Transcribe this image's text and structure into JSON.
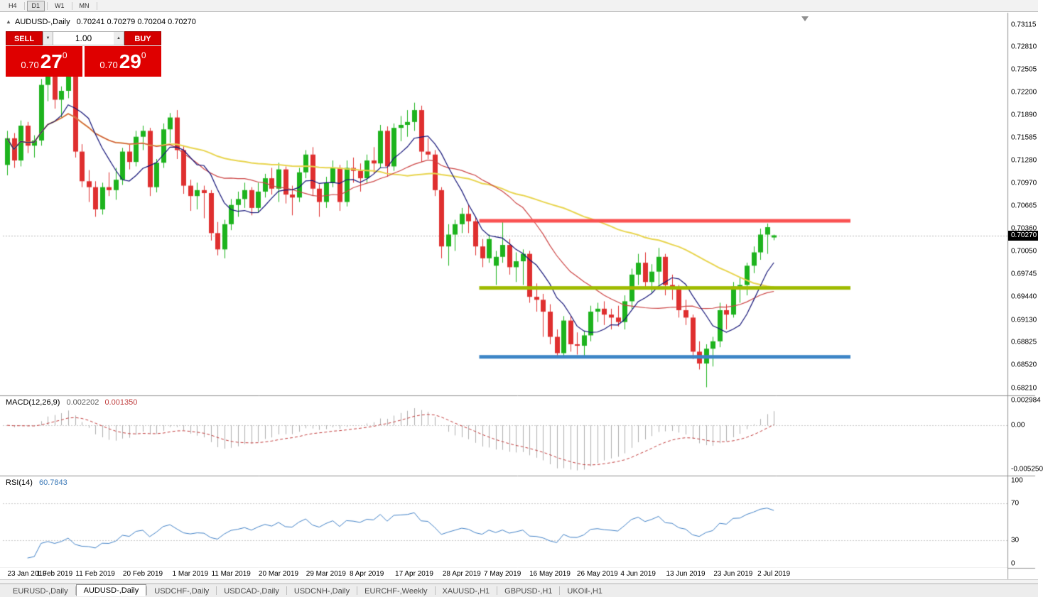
{
  "toolbar": {
    "periods": [
      {
        "label": "H4",
        "active": false
      },
      {
        "label": "D1",
        "active": true
      },
      {
        "label": "W1",
        "active": false
      },
      {
        "label": "MN",
        "active": false
      }
    ]
  },
  "chart_header": {
    "title": "AUDUSD-,Daily",
    "ohlc": "0.70241 0.70279 0.70204 0.70270"
  },
  "trade_panel": {
    "sell_label": "SELL",
    "buy_label": "BUY",
    "volume": "1.00",
    "bid": {
      "prefix": "0.70",
      "big": "27",
      "sup": "0"
    },
    "ask": {
      "prefix": "0.70",
      "big": "29",
      "sup": "0"
    }
  },
  "price_scale": {
    "labels": [
      "0.73115",
      "0.72810",
      "0.72505",
      "0.72200",
      "0.71890",
      "0.71585",
      "0.71280",
      "0.70970",
      "0.70665",
      "0.70360",
      "0.70050",
      "0.69745",
      "0.69440",
      "0.69130",
      "0.68825",
      "0.68520",
      "0.68210"
    ],
    "bid_badge": "0.70270"
  },
  "time_axis": {
    "labels": [
      {
        "text": "23 Jan 2019",
        "bar": 0
      },
      {
        "text": "1 Feb 2019",
        "bar": 7
      },
      {
        "text": "11 Feb 2019",
        "bar": 13
      },
      {
        "text": "20 Feb 2019",
        "bar": 20
      },
      {
        "text": "1 Mar 2019",
        "bar": 27
      },
      {
        "text": "11 Mar 2019",
        "bar": 33
      },
      {
        "text": "20 Mar 2019",
        "bar": 40
      },
      {
        "text": "29 Mar 2019",
        "bar": 47
      },
      {
        "text": "8 Apr 2019",
        "bar": 53
      },
      {
        "text": "17 Apr 2019",
        "bar": 60
      },
      {
        "text": "28 Apr 2019",
        "bar": 67
      },
      {
        "text": "7 May 2019",
        "bar": 73
      },
      {
        "text": "16 May 2019",
        "bar": 80
      },
      {
        "text": "26 May 2019",
        "bar": 87
      },
      {
        "text": "4 Jun 2019",
        "bar": 93
      },
      {
        "text": "13 Jun 2019",
        "bar": 100
      },
      {
        "text": "23 Jun 2019",
        "bar": 107
      },
      {
        "text": "2 Jul 2019",
        "bar": 113
      }
    ]
  },
  "macd_panel": {
    "title": "MACD(12,26,9)",
    "value_main": "0.002202",
    "value_signal": "0.001350",
    "scale_labels": [
      "0.002984",
      "0.00",
      "-0.005250"
    ]
  },
  "rsi_panel": {
    "title": "RSI(14)",
    "value": "60.7843",
    "scale_labels": [
      "100",
      "70",
      "30",
      "0"
    ]
  },
  "tabs": [
    {
      "label": "EURUSD-,Daily",
      "active": false
    },
    {
      "label": "AUDUSD-,Daily",
      "active": true
    },
    {
      "label": "USDCHF-,Daily",
      "active": false
    },
    {
      "label": "USDCAD-,Daily",
      "active": false
    },
    {
      "label": "USDCNH-,Daily",
      "active": false
    },
    {
      "label": "EURCHF-,Weekly",
      "active": false
    },
    {
      "label": "XAUUSD-,H1",
      "active": false
    },
    {
      "label": "GBPUSD-,H1",
      "active": false
    },
    {
      "label": "UKOil-,H1",
      "active": false
    }
  ],
  "chart_data": {
    "type": "candlestick",
    "symbol": "AUDUSD-",
    "timeframe": "Daily",
    "ohlc_current": {
      "open": 0.70241,
      "high": 0.70279,
      "low": 0.70204,
      "close": 0.7027
    },
    "bid_price": 0.7027,
    "ylim": [
      0.6811,
      0.73235
    ],
    "rsi_levels": [
      70,
      30
    ],
    "colors": {
      "up": "#1db31d",
      "down": "#df2f2f",
      "bid_line": "#b4b4b4",
      "macd_hist": "#aeaeae",
      "macd_signal": "#c03a3a",
      "rsi": "#4080c6",
      "level_dotted": "#c8c8c8",
      "separator": "#8f8f8f",
      "tick": "#555555"
    },
    "moving_averages": [
      {
        "period": 50,
        "color": "#e8d44d",
        "width": 2
      },
      {
        "period": 20,
        "color": "#cc4444",
        "width": 1.2
      },
      {
        "period": 8,
        "color": "#141478",
        "width": 1.2
      }
    ],
    "hlines": [
      {
        "price": 0.70466,
        "color": "#fa5252",
        "from_bar": 70,
        "to_x": 1197,
        "thickness": 5
      },
      {
        "price": 0.6956,
        "color": "#9fbb00",
        "from_bar": 70,
        "to_x": 1197,
        "thickness": 5
      },
      {
        "price": 0.6863,
        "color": "#3d85c6",
        "from_bar": 70,
        "to_x": 1197,
        "thickness": 5
      }
    ],
    "candles": [
      [
        0.7122,
        0.7168,
        0.7108,
        0.7158
      ],
      [
        0.7158,
        0.7165,
        0.7118,
        0.7128
      ],
      [
        0.7128,
        0.7182,
        0.712,
        0.7175
      ],
      [
        0.7175,
        0.718,
        0.7138,
        0.7148
      ],
      [
        0.7148,
        0.7162,
        0.7132,
        0.7155
      ],
      [
        0.7155,
        0.7238,
        0.7148,
        0.723
      ],
      [
        0.723,
        0.725,
        0.7208,
        0.7242
      ],
      [
        0.7242,
        0.7248,
        0.7198,
        0.721
      ],
      [
        0.721,
        0.7228,
        0.7185,
        0.7222
      ],
      [
        0.7222,
        0.7248,
        0.7212,
        0.7243
      ],
      [
        0.7243,
        0.7246,
        0.7132,
        0.714
      ],
      [
        0.714,
        0.715,
        0.7092,
        0.71
      ],
      [
        0.71,
        0.7115,
        0.7072,
        0.7092
      ],
      [
        0.7092,
        0.71,
        0.7052,
        0.7062
      ],
      [
        0.7062,
        0.7098,
        0.7055,
        0.7092
      ],
      [
        0.7092,
        0.7112,
        0.708,
        0.7088
      ],
      [
        0.7088,
        0.7118,
        0.7075,
        0.7102
      ],
      [
        0.7102,
        0.7145,
        0.7095,
        0.714
      ],
      [
        0.714,
        0.715,
        0.7116,
        0.7126
      ],
      [
        0.7126,
        0.7168,
        0.712,
        0.716
      ],
      [
        0.716,
        0.7175,
        0.7142,
        0.7168
      ],
      [
        0.7168,
        0.7172,
        0.708,
        0.7092
      ],
      [
        0.7092,
        0.713,
        0.7085,
        0.7125
      ],
      [
        0.7125,
        0.7178,
        0.7118,
        0.717
      ],
      [
        0.717,
        0.7192,
        0.7152,
        0.7186
      ],
      [
        0.7186,
        0.7196,
        0.713,
        0.7142
      ],
      [
        0.7142,
        0.7148,
        0.7083,
        0.7094
      ],
      [
        0.7094,
        0.7102,
        0.706,
        0.708
      ],
      [
        0.708,
        0.7098,
        0.7062,
        0.7088
      ],
      [
        0.7088,
        0.7094,
        0.705,
        0.7084
      ],
      [
        0.7084,
        0.7088,
        0.702,
        0.703
      ],
      [
        0.703,
        0.7045,
        0.7,
        0.7008
      ],
      [
        0.7008,
        0.7048,
        0.6996,
        0.7042
      ],
      [
        0.7042,
        0.7076,
        0.7034,
        0.7068
      ],
      [
        0.7068,
        0.7086,
        0.7052,
        0.7076
      ],
      [
        0.7076,
        0.7098,
        0.7064,
        0.7088
      ],
      [
        0.7088,
        0.7092,
        0.7054,
        0.7064
      ],
      [
        0.7064,
        0.7098,
        0.7058,
        0.7086
      ],
      [
        0.7086,
        0.711,
        0.7078,
        0.7104
      ],
      [
        0.7104,
        0.7118,
        0.7082,
        0.709
      ],
      [
        0.709,
        0.7125,
        0.7072,
        0.7116
      ],
      [
        0.7116,
        0.712,
        0.707,
        0.7082
      ],
      [
        0.7082,
        0.7094,
        0.7054,
        0.7078
      ],
      [
        0.7078,
        0.7118,
        0.7072,
        0.7112
      ],
      [
        0.7112,
        0.7142,
        0.7104,
        0.7136
      ],
      [
        0.7136,
        0.7146,
        0.708,
        0.709
      ],
      [
        0.709,
        0.7096,
        0.7052,
        0.7072
      ],
      [
        0.7072,
        0.7106,
        0.7064,
        0.7098
      ],
      [
        0.7098,
        0.7128,
        0.7092,
        0.7118
      ],
      [
        0.7118,
        0.7122,
        0.706,
        0.7072
      ],
      [
        0.7072,
        0.7128,
        0.7066,
        0.7118
      ],
      [
        0.7118,
        0.7132,
        0.7098,
        0.7114
      ],
      [
        0.7114,
        0.7124,
        0.7086,
        0.7104
      ],
      [
        0.7104,
        0.7136,
        0.7098,
        0.7128
      ],
      [
        0.7128,
        0.7146,
        0.711,
        0.7124
      ],
      [
        0.7124,
        0.7176,
        0.7118,
        0.7168
      ],
      [
        0.7168,
        0.7174,
        0.7106,
        0.712
      ],
      [
        0.712,
        0.7178,
        0.7114,
        0.7172
      ],
      [
        0.7172,
        0.7188,
        0.7154,
        0.7176
      ],
      [
        0.7176,
        0.7196,
        0.716,
        0.718
      ],
      [
        0.718,
        0.7206,
        0.7168,
        0.7196
      ],
      [
        0.7196,
        0.7202,
        0.7126,
        0.714
      ],
      [
        0.714,
        0.7158,
        0.713,
        0.7136
      ],
      [
        0.7136,
        0.7142,
        0.708,
        0.7088
      ],
      [
        0.7088,
        0.7092,
        0.6996,
        0.7012
      ],
      [
        0.7012,
        0.7042,
        0.6986,
        0.7028
      ],
      [
        0.7028,
        0.7048,
        0.7006,
        0.7042
      ],
      [
        0.7042,
        0.7064,
        0.703,
        0.7056
      ],
      [
        0.7056,
        0.7068,
        0.703,
        0.7046
      ],
      [
        0.7046,
        0.7052,
        0.7,
        0.7012
      ],
      [
        0.7012,
        0.7022,
        0.6984,
        0.6996
      ],
      [
        0.6996,
        0.7028,
        0.699,
        0.7022
      ],
      [
        0.6986,
        0.7006,
        0.696,
        0.6998
      ],
      [
        0.6998,
        0.7046,
        0.699,
        0.7014
      ],
      [
        0.7014,
        0.7022,
        0.6974,
        0.6984
      ],
      [
        0.6984,
        0.7004,
        0.6964,
        0.6992
      ],
      [
        0.6992,
        0.7008,
        0.696,
        0.7002
      ],
      [
        0.7002,
        0.7006,
        0.6936,
        0.6944
      ],
      [
        0.6944,
        0.6962,
        0.6924,
        0.694
      ],
      [
        0.694,
        0.6948,
        0.689,
        0.6924
      ],
      [
        0.6924,
        0.6934,
        0.688,
        0.689
      ],
      [
        0.689,
        0.69,
        0.6862,
        0.6868
      ],
      [
        0.6868,
        0.6918,
        0.6864,
        0.6912
      ],
      [
        0.6912,
        0.6918,
        0.687,
        0.688
      ],
      [
        0.688,
        0.6896,
        0.6866,
        0.6878
      ],
      [
        0.6878,
        0.6898,
        0.6864,
        0.6892
      ],
      [
        0.6892,
        0.6932,
        0.6884,
        0.6924
      ],
      [
        0.6924,
        0.6936,
        0.691,
        0.6928
      ],
      [
        0.6928,
        0.6938,
        0.6906,
        0.692
      ],
      [
        0.692,
        0.6928,
        0.69,
        0.6916
      ],
      [
        0.6916,
        0.6932,
        0.6904,
        0.691
      ],
      [
        0.691,
        0.6946,
        0.69,
        0.6938
      ],
      [
        0.6938,
        0.6982,
        0.6928,
        0.6974
      ],
      [
        0.6974,
        0.7002,
        0.696,
        0.699
      ],
      [
        0.699,
        0.7004,
        0.6954,
        0.6964
      ],
      [
        0.6964,
        0.6988,
        0.695,
        0.6978
      ],
      [
        0.6978,
        0.701,
        0.696,
        0.6998
      ],
      [
        0.6998,
        0.7002,
        0.6946,
        0.696
      ],
      [
        0.696,
        0.6974,
        0.694,
        0.6956
      ],
      [
        0.6956,
        0.696,
        0.6916,
        0.6926
      ],
      [
        0.6926,
        0.694,
        0.6906,
        0.6916
      ],
      [
        0.6916,
        0.692,
        0.686,
        0.687
      ],
      [
        0.687,
        0.6884,
        0.6846,
        0.6854
      ],
      [
        0.6854,
        0.688,
        0.6822,
        0.6874
      ],
      [
        0.6874,
        0.689,
        0.685,
        0.6884
      ],
      [
        0.6884,
        0.6936,
        0.6876,
        0.6926
      ],
      [
        0.6926,
        0.6934,
        0.69,
        0.692
      ],
      [
        0.692,
        0.6964,
        0.6916,
        0.6958
      ],
      [
        0.6958,
        0.697,
        0.6936,
        0.696
      ],
      [
        0.696,
        0.699,
        0.6946,
        0.6986
      ],
      [
        0.6986,
        0.7012,
        0.6976,
        0.7004
      ],
      [
        0.7004,
        0.7036,
        0.6994,
        0.7028
      ],
      [
        0.7028,
        0.7043,
        0.7002,
        0.7038
      ],
      [
        0.70241,
        0.70279,
        0.70204,
        0.7027
      ]
    ]
  }
}
